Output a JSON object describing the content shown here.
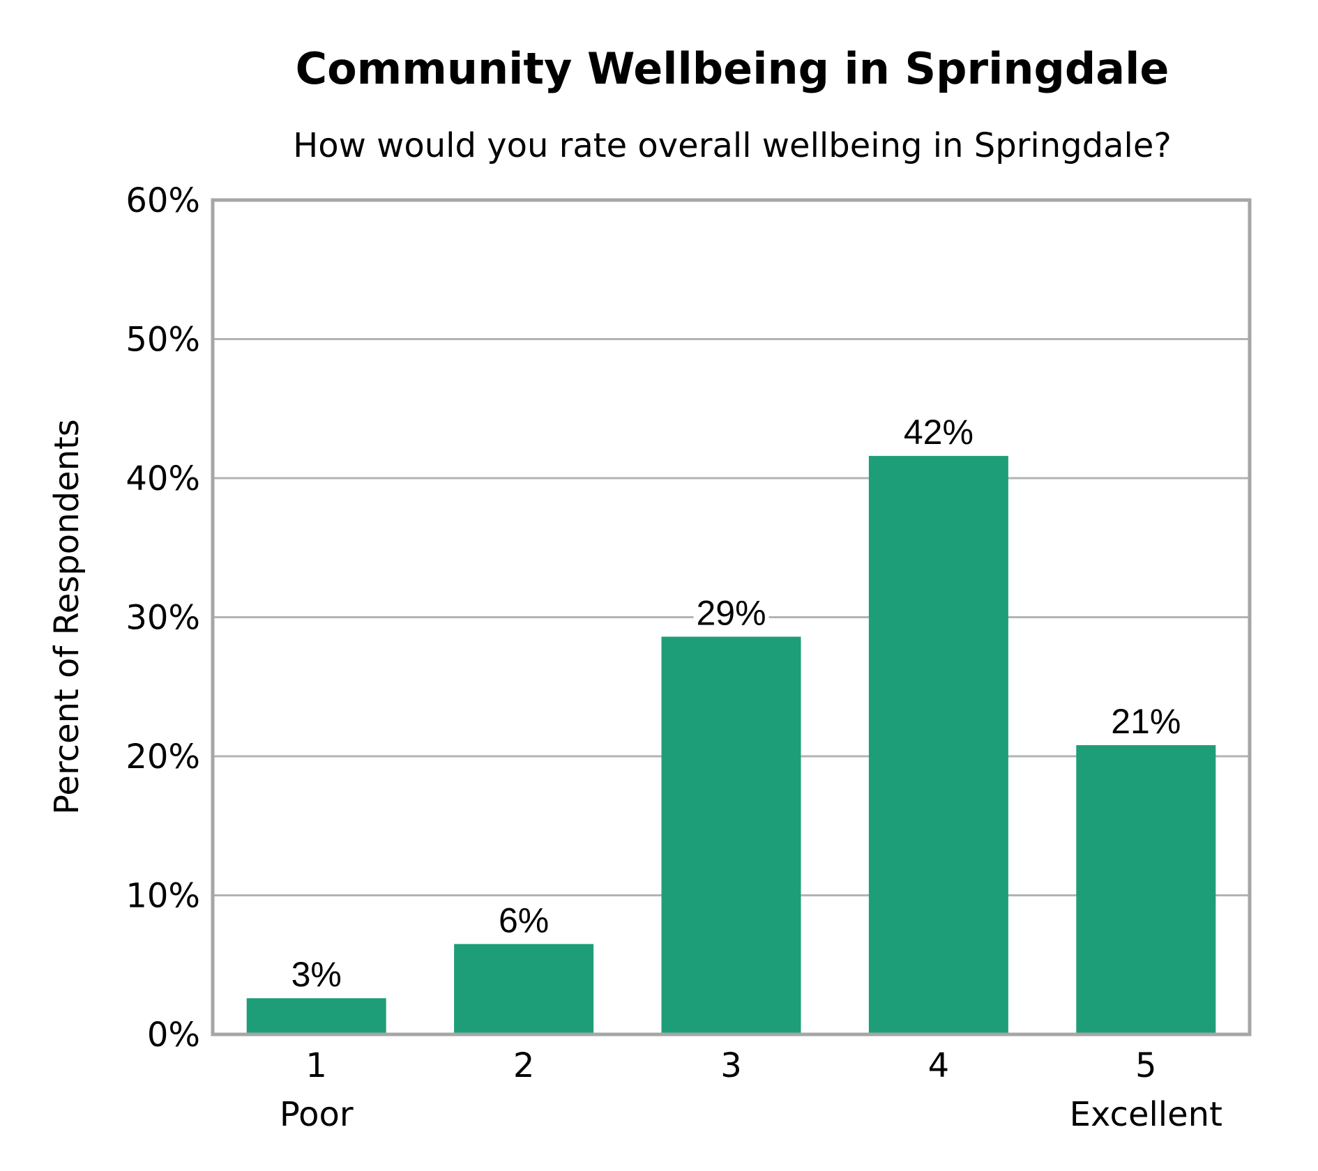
{
  "chart_data": {
    "type": "bar",
    "title": "Community Wellbeing in Springdale",
    "subtitle": "How would you rate overall wellbeing in Springdale?",
    "ylabel": "Percent of Respondents",
    "xlabel": "",
    "categories": [
      "1",
      "2",
      "3",
      "4",
      "5"
    ],
    "category_sublabels": [
      "Poor",
      "",
      "",
      "",
      "Excellent"
    ],
    "values": [
      2.6,
      6.5,
      28.6,
      41.6,
      20.8
    ],
    "data_labels": [
      "3%",
      "6%",
      "29%",
      "42%",
      "21%"
    ],
    "ylim": [
      0,
      60
    ],
    "yticks": [
      0,
      10,
      20,
      30,
      40,
      50,
      60
    ],
    "ytick_labels": [
      "0%",
      "10%",
      "20%",
      "30%",
      "40%",
      "50%",
      "60%"
    ],
    "grid": true,
    "legend": "none",
    "bar_color": "#1e9e78"
  }
}
